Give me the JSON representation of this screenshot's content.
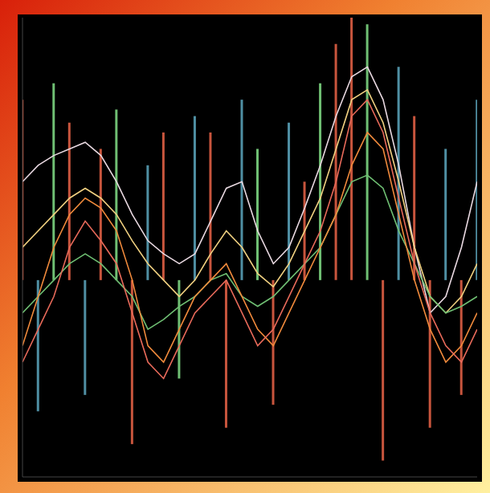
{
  "chart_data": {
    "type": "line",
    "x": [
      0,
      1,
      2,
      3,
      4,
      5,
      6,
      7,
      8,
      9,
      10,
      11,
      12,
      13,
      14,
      15,
      16,
      17,
      18,
      19,
      20,
      21,
      22,
      23,
      24,
      25,
      26,
      27,
      28,
      29
    ],
    "xlim": [
      0,
      29
    ],
    "ylim": [
      -60,
      80
    ],
    "tick_labels": false,
    "series": [
      {
        "type": "bar",
        "colors": [
          "#c8553d",
          "#4f8fa3",
          "#6fbf73",
          "#c8553d",
          "#4f8fa3",
          "#c8553d",
          "#6fbf73",
          "#c8553d",
          "#4f8fa3",
          "#c8553d",
          "#6fbf73",
          "#4f8fa3",
          "#c8553d",
          "#c8553d",
          "#4f8fa3",
          "#6fbf73",
          "#c8553d",
          "#4f8fa3",
          "#c8553d",
          "#6fbf73",
          "#c8553d",
          "#c8553d",
          "#6fbf73",
          "#c8553d",
          "#4f8fa3",
          "#c8553d",
          "#c8553d",
          "#4f8fa3",
          "#c8553d",
          "#4f8fa3"
        ],
        "values": [
          55,
          -40,
          60,
          48,
          -35,
          40,
          52,
          -50,
          35,
          45,
          -30,
          50,
          45,
          -45,
          55,
          40,
          -38,
          48,
          30,
          60,
          72,
          80,
          78,
          -55,
          65,
          50,
          -45,
          40,
          -35,
          55
        ]
      },
      {
        "color": "#e8d8e0",
        "values": [
          30,
          35,
          38,
          40,
          42,
          38,
          30,
          20,
          12,
          8,
          5,
          8,
          18,
          28,
          30,
          15,
          5,
          10,
          22,
          35,
          50,
          62,
          65,
          55,
          35,
          10,
          -10,
          -5,
          10,
          30
        ]
      },
      {
        "color": "#f0d080",
        "values": [
          10,
          15,
          20,
          25,
          28,
          25,
          20,
          12,
          5,
          0,
          -5,
          0,
          8,
          15,
          10,
          2,
          -2,
          5,
          15,
          25,
          40,
          55,
          58,
          48,
          30,
          10,
          -5,
          -10,
          -5,
          5
        ]
      },
      {
        "color": "#6fbf73",
        "values": [
          -10,
          -5,
          0,
          5,
          8,
          5,
          0,
          -5,
          -15,
          -12,
          -8,
          -5,
          0,
          2,
          -5,
          -8,
          -5,
          0,
          5,
          10,
          20,
          30,
          32,
          28,
          15,
          5,
          -5,
          -10,
          -8,
          -5
        ]
      },
      {
        "color": "#f08a3c",
        "values": [
          -20,
          -5,
          10,
          20,
          25,
          22,
          15,
          0,
          -20,
          -25,
          -15,
          -5,
          0,
          5,
          -5,
          -15,
          -20,
          -10,
          0,
          10,
          20,
          35,
          45,
          40,
          20,
          0,
          -15,
          -25,
          -20,
          -10
        ]
      },
      {
        "color": "#e86a5a",
        "values": [
          -25,
          -15,
          -5,
          10,
          18,
          12,
          5,
          -10,
          -25,
          -30,
          -20,
          -10,
          -5,
          0,
          -10,
          -20,
          -15,
          -5,
          5,
          15,
          30,
          50,
          55,
          45,
          25,
          5,
          -10,
          -20,
          -25,
          -15
        ]
      }
    ]
  }
}
